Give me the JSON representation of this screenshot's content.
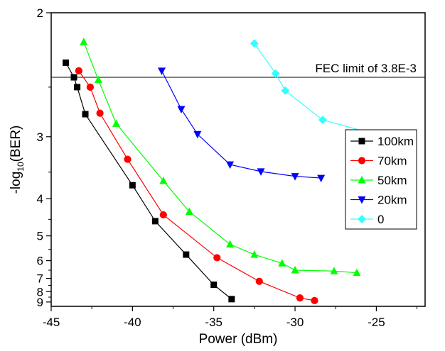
{
  "chart_data": {
    "type": "line",
    "xlabel": "Power (dBm)",
    "ylabel_main": "-log",
    "ylabel_sub": "10",
    "ylabel_tail": "(BER)",
    "xlim": [
      -45,
      -22
    ],
    "ylim": [
      2,
      9.5
    ],
    "y_scale": "reciprocal",
    "x_ticks": [
      -45,
      -40,
      -35,
      -30,
      -25
    ],
    "y_ticks": [
      2,
      3,
      4,
      5,
      6,
      7,
      8,
      9
    ],
    "x_tick_labels": [
      "-45",
      "-40",
      "-35",
      "-30",
      "-25"
    ],
    "y_tick_labels": [
      "2",
      "3",
      "4",
      "5",
      "6",
      "7",
      "8",
      "9"
    ],
    "reference_line": {
      "y": 2.42,
      "label": "FEC limit of 3.8E-3"
    },
    "legend_position": "right",
    "series": [
      {
        "name": "100km",
        "color": "#000000",
        "marker": "square",
        "x": [
          -44.1,
          -43.6,
          -43.4,
          -42.9,
          -40.0,
          -38.6,
          -36.7,
          -35.0,
          -33.9
        ],
        "y": [
          2.31,
          2.42,
          2.5,
          2.75,
          3.73,
          4.55,
          5.72,
          7.45,
          8.7
        ]
      },
      {
        "name": "70km",
        "color": "#ff0000",
        "marker": "circle",
        "x": [
          -43.3,
          -42.6,
          -42.0,
          -40.3,
          -38.1,
          -34.8,
          -32.2,
          -29.7,
          -28.8
        ],
        "y": [
          2.37,
          2.5,
          2.74,
          3.3,
          4.38,
          5.86,
          7.2,
          8.58,
          8.85
        ]
      },
      {
        "name": "50km",
        "color": "#00ff00",
        "marker": "triangle-up",
        "x": [
          -43.0,
          -42.1,
          -41.0,
          -38.1,
          -36.5,
          -34.0,
          -32.5,
          -30.8,
          -30.0,
          -27.6,
          -26.2
        ],
        "y": [
          2.17,
          2.44,
          2.85,
          3.65,
          4.3,
          5.3,
          5.72,
          6.13,
          6.5,
          6.55,
          6.65
        ]
      },
      {
        "name": "20km",
        "color": "#0000ff",
        "marker": "triangle-down",
        "x": [
          -38.2,
          -37.0,
          -36.0,
          -34.0,
          -32.1,
          -30.0,
          -28.4
        ],
        "y": [
          2.37,
          2.7,
          2.97,
          3.38,
          3.49,
          3.57,
          3.6
        ]
      },
      {
        "name": "0",
        "color": "#33ffff",
        "marker": "diamond",
        "x": [
          -32.5,
          -31.2,
          -30.6,
          -28.3,
          -23.6
        ],
        "y": [
          2.18,
          2.39,
          2.53,
          2.81,
          3.05
        ]
      }
    ]
  }
}
